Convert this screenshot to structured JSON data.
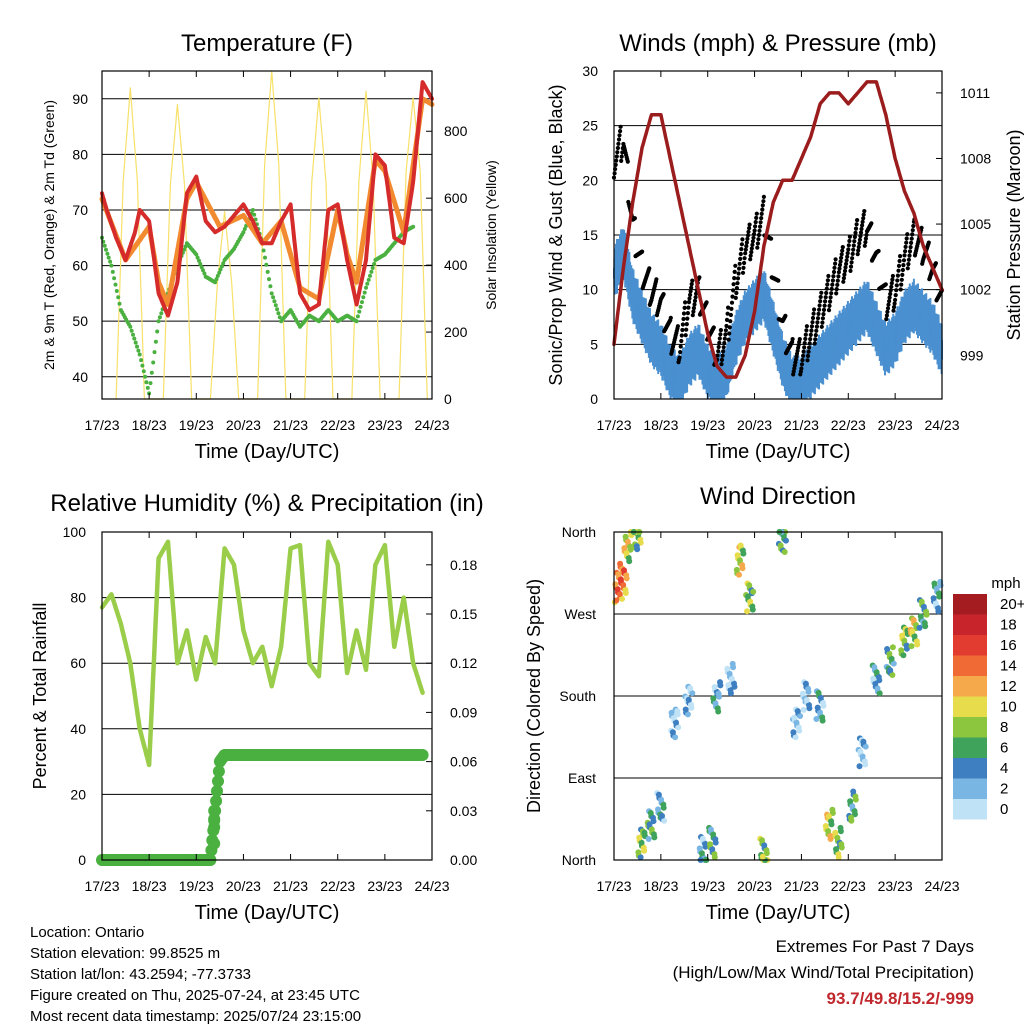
{
  "chart_data": [
    {
      "id": "temperature",
      "type": "line",
      "title": "Temperature (F)",
      "xlabel": "Time (Day/UTC)",
      "ylabel": "2m & 9m T (Red, Orange) & 2m Td (Green)",
      "y2label": "Solar Insolation (Yellow)",
      "x_ticks": [
        "17/23",
        "18/23",
        "19/23",
        "20/23",
        "21/23",
        "22/23",
        "23/23",
        "24/23"
      ],
      "ylim": [
        36,
        95
      ],
      "y_ticks": [
        40,
        50,
        60,
        70,
        80,
        90
      ],
      "y2lim": [
        0,
        980
      ],
      "y2_ticks": [
        0,
        200,
        400,
        600,
        800
      ],
      "colors": {
        "t2m": "#d62b2b",
        "t9m": "#f28a30",
        "td": "#4ab040",
        "solar": "#f7e16a"
      },
      "series": [
        {
          "key": "t2m",
          "x": [
            0,
            0.1,
            0.3,
            0.5,
            0.7,
            0.8,
            1,
            1.2,
            1.4,
            1.6,
            1.8,
            2,
            2.2,
            2.4,
            2.6,
            2.8,
            3,
            3.2,
            3.4,
            3.6,
            3.8,
            4,
            4.2,
            4.4,
            4.6,
            4.8,
            5,
            5.2,
            5.4,
            5.6,
            5.8,
            6,
            6.2,
            6.4,
            6.6,
            6.8,
            7
          ],
          "y": [
            73,
            70,
            65,
            61,
            66,
            70,
            68,
            55,
            51,
            57,
            73,
            76,
            68,
            66,
            67,
            69,
            71,
            68,
            64,
            64,
            68,
            71,
            55,
            52,
            53,
            70,
            71,
            61,
            53,
            61,
            80,
            78,
            65,
            64,
            75,
            93,
            90
          ]
        },
        {
          "key": "t9m",
          "x": [
            0,
            0.5,
            1,
            1.2,
            1.4,
            1.8,
            2,
            2.5,
            3,
            3.4,
            3.8,
            4.2,
            4.6,
            5,
            5.2,
            5.4,
            5.8,
            6,
            6.4,
            6.8,
            7
          ],
          "y": [
            72,
            61,
            67,
            57,
            53,
            72,
            75,
            67,
            69,
            64,
            68,
            56,
            54,
            70,
            62,
            57,
            79,
            77,
            66,
            90,
            89
          ]
        },
        {
          "key": "td",
          "x": [
            0,
            0.2,
            0.4,
            0.6,
            0.8,
            1,
            1.2,
            1.4,
            1.6,
            1.8,
            2,
            2.2,
            2.4,
            2.6,
            2.8,
            3,
            3.2,
            3.4,
            3.6,
            3.8,
            4,
            4.2,
            4.4,
            4.6,
            4.8,
            5,
            5.2,
            5.4,
            5.6,
            5.8,
            6,
            6.2,
            6.4,
            6.6
          ],
          "y": [
            65,
            60,
            52,
            49,
            44,
            37,
            50,
            55,
            60,
            64,
            62,
            58,
            57,
            61,
            63,
            66,
            70,
            64,
            55,
            50,
            52,
            49,
            51,
            50,
            52,
            50,
            51,
            50,
            56,
            61,
            62,
            64,
            66,
            67
          ]
        },
        {
          "key": "solar",
          "x": [
            0.3,
            0.45,
            0.6,
            0.75,
            0.9,
            1.3,
            1.45,
            1.6,
            1.75,
            1.9,
            2.3,
            2.45,
            2.6,
            2.75,
            2.9,
            3.3,
            3.45,
            3.6,
            3.75,
            3.9,
            4.3,
            4.45,
            4.6,
            4.75,
            4.9,
            5.3,
            5.45,
            5.6,
            5.75,
            5.9,
            6.3,
            6.45,
            6.6,
            6.75,
            6.9
          ],
          "y": [
            0,
            650,
            930,
            650,
            0,
            0,
            640,
            880,
            640,
            0,
            0,
            350,
            560,
            350,
            0,
            0,
            700,
            980,
            700,
            0,
            0,
            650,
            900,
            650,
            0,
            0,
            650,
            920,
            650,
            0,
            0,
            680,
            900,
            680,
            0
          ]
        }
      ]
    },
    {
      "id": "winds",
      "type": "scatter",
      "title": "Winds (mph) & Pressure (mb)",
      "xlabel": "Time (Day/UTC)",
      "ylabel": "Sonic/Prop Wind & Gust (Blue, Black)",
      "y2label": "Station Pressure (Maroon)",
      "x_ticks": [
        "17/23",
        "18/23",
        "19/23",
        "20/23",
        "21/23",
        "22/23",
        "23/23",
        "24/23"
      ],
      "ylim": [
        0,
        30
      ],
      "y_ticks": [
        0,
        5,
        10,
        15,
        20,
        25,
        30
      ],
      "y2lim": [
        997,
        1012
      ],
      "y2_ticks": [
        999,
        1002,
        1005,
        1008,
        1011
      ],
      "colors": {
        "wind": "#4a90d0",
        "gust": "#000000",
        "pressure": "#9b1c1c"
      },
      "series": [
        {
          "key": "wind",
          "x": [
            0,
            0.2,
            0.4,
            0.6,
            0.8,
            1,
            1.2,
            1.4,
            1.6,
            1.8,
            2,
            2.2,
            2.4,
            2.6,
            2.8,
            3,
            3.2,
            3.4,
            3.6,
            3.8,
            4,
            4.2,
            4.4,
            4.6,
            4.8,
            5,
            5.2,
            5.4,
            5.6,
            5.8,
            6,
            6.2,
            6.4,
            6.6,
            6.8,
            7
          ],
          "y": [
            12,
            14,
            10,
            8,
            6,
            5,
            3,
            2,
            4,
            5,
            3,
            2,
            3,
            6,
            8,
            9,
            10,
            7,
            4,
            2,
            2,
            3,
            4,
            5,
            6,
            7,
            8,
            9,
            7,
            5,
            6,
            8,
            9,
            8,
            7,
            5
          ]
        },
        {
          "key": "gust",
          "x": [
            0,
            0.2,
            0.4,
            0.6,
            0.8,
            1,
            1.2,
            1.4,
            1.6,
            1.8,
            2,
            2.2,
            2.4,
            2.6,
            2.8,
            3,
            3.2,
            3.4,
            3.6,
            3.8,
            4,
            4.2,
            4.4,
            4.6,
            4.8,
            5,
            5.2,
            5.4,
            5.6,
            5.8,
            6,
            6.2,
            6.4,
            6.6,
            6.8,
            7
          ],
          "y": [
            22,
            24,
            16,
            12,
            10,
            9,
            6,
            5,
            9,
            10,
            7,
            4,
            6,
            11,
            14,
            15,
            17,
            12,
            7,
            4,
            4,
            6,
            8,
            10,
            12,
            13,
            15,
            16,
            13,
            9,
            10,
            13,
            15,
            14,
            12,
            9
          ]
        },
        {
          "key": "pressure",
          "x": [
            0,
            0.2,
            0.4,
            0.6,
            0.8,
            1,
            1.2,
            1.4,
            1.6,
            1.8,
            2,
            2.2,
            2.4,
            2.6,
            2.8,
            3,
            3.2,
            3.4,
            3.6,
            3.8,
            4,
            4.2,
            4.4,
            4.6,
            4.8,
            5,
            5.2,
            5.4,
            5.6,
            5.8,
            6,
            6.2,
            6.4,
            6.6,
            6.8,
            7
          ],
          "y": [
            999.5,
            1003,
            1006,
            1008.5,
            1010,
            1010,
            1008,
            1006,
            1004,
            1002,
            1000,
            998.5,
            998,
            998,
            999,
            1001,
            1004,
            1006,
            1007,
            1007,
            1008,
            1009,
            1010.5,
            1011,
            1011,
            1010.5,
            1011,
            1011.5,
            1011.5,
            1010,
            1008,
            1006.5,
            1005.5,
            1004,
            1003,
            1002
          ]
        }
      ]
    },
    {
      "id": "humidity",
      "type": "line",
      "title": "Relative Humidity (%) & Precipitation (in)",
      "xlabel": "Time (Day/UTC)",
      "ylabel": "Percent & Total Rainfall",
      "x_ticks": [
        "17/23",
        "18/23",
        "19/23",
        "20/23",
        "21/23",
        "22/23",
        "23/23",
        "24/23"
      ],
      "ylim": [
        0,
        100
      ],
      "y_ticks": [
        0,
        20,
        40,
        60,
        80,
        100
      ],
      "y2lim": [
        0,
        0.2
      ],
      "y2_ticks": [
        "0.00",
        "0.03",
        "0.06",
        "0.09",
        "0.12",
        "0.15",
        "0.18"
      ],
      "colors": {
        "rh": "#9acd4a",
        "precip": "#4ab040"
      },
      "series": [
        {
          "key": "rh",
          "x": [
            0,
            0.2,
            0.4,
            0.6,
            0.8,
            1,
            1.2,
            1.4,
            1.6,
            1.8,
            2,
            2.2,
            2.4,
            2.6,
            2.8,
            3,
            3.2,
            3.4,
            3.6,
            3.8,
            4,
            4.2,
            4.4,
            4.6,
            4.8,
            5,
            5.2,
            5.4,
            5.6,
            5.8,
            6,
            6.2,
            6.4,
            6.6,
            6.8
          ],
          "y": [
            77,
            81,
            72,
            60,
            40,
            29,
            92,
            97,
            60,
            70,
            55,
            68,
            60,
            95,
            90,
            70,
            60,
            65,
            53,
            65,
            95,
            96,
            60,
            56,
            97,
            90,
            57,
            70,
            58,
            90,
            96,
            65,
            80,
            60,
            51
          ]
        },
        {
          "key": "precip",
          "x": [
            0,
            1.4,
            2.3,
            2.5,
            2.6,
            6.8
          ],
          "y": [
            0,
            0,
            0,
            0.06,
            0.064,
            0.064
          ]
        }
      ]
    },
    {
      "id": "direction",
      "type": "scatter",
      "title": "Wind Direction",
      "xlabel": "Time (Day/UTC)",
      "ylabel": "Direction (Colored By Speed)",
      "x_ticks": [
        "17/23",
        "18/23",
        "19/23",
        "20/23",
        "21/23",
        "22/23",
        "23/23",
        "24/23"
      ],
      "y_ticks": [
        "North",
        "East",
        "South",
        "West",
        "North"
      ],
      "ylim": [
        0,
        360
      ],
      "legend_title": "mph",
      "legend_labels": [
        "20+",
        "18",
        "16",
        "14",
        "12",
        "10",
        "8",
        "6",
        "4",
        "2",
        "0"
      ],
      "legend_colors": [
        "#a51c20",
        "#c8242b",
        "#e23b2f",
        "#f06a35",
        "#f6a94a",
        "#e6dc4c",
        "#8cc63f",
        "#3fa35b",
        "#3d7fc0",
        "#7ab6e3",
        "#bfe2f6"
      ],
      "points": [
        {
          "x": 0.1,
          "y": 300,
          "s": 14
        },
        {
          "x": 0.2,
          "y": 310,
          "s": 14
        },
        {
          "x": 0.3,
          "y": 345,
          "s": 10
        },
        {
          "x": 0.5,
          "y": 358,
          "s": 8
        },
        {
          "x": 0.6,
          "y": 20,
          "s": 8
        },
        {
          "x": 0.8,
          "y": 40,
          "s": 6
        },
        {
          "x": 1.0,
          "y": 60,
          "s": 4
        },
        {
          "x": 1.3,
          "y": 150,
          "s": 2
        },
        {
          "x": 1.6,
          "y": 175,
          "s": 2
        },
        {
          "x": 1.9,
          "y": 10,
          "s": 4
        },
        {
          "x": 2.1,
          "y": 20,
          "s": 6
        },
        {
          "x": 2.2,
          "y": 180,
          "s": 4
        },
        {
          "x": 2.5,
          "y": 200,
          "s": 2
        },
        {
          "x": 2.7,
          "y": 330,
          "s": 10
        },
        {
          "x": 2.9,
          "y": 290,
          "s": 8
        },
        {
          "x": 3.2,
          "y": 10,
          "s": 8
        },
        {
          "x": 3.6,
          "y": 355,
          "s": 6
        },
        {
          "x": 3.9,
          "y": 150,
          "s": 2
        },
        {
          "x": 4.1,
          "y": 180,
          "s": 2
        },
        {
          "x": 4.4,
          "y": 170,
          "s": 4
        },
        {
          "x": 4.6,
          "y": 40,
          "s": 10
        },
        {
          "x": 4.8,
          "y": 20,
          "s": 8
        },
        {
          "x": 5.1,
          "y": 60,
          "s": 6
        },
        {
          "x": 5.3,
          "y": 120,
          "s": 2
        },
        {
          "x": 5.6,
          "y": 200,
          "s": 4
        },
        {
          "x": 5.9,
          "y": 220,
          "s": 6
        },
        {
          "x": 6.2,
          "y": 240,
          "s": 8
        },
        {
          "x": 6.4,
          "y": 250,
          "s": 10
        },
        {
          "x": 6.6,
          "y": 270,
          "s": 6
        },
        {
          "x": 6.9,
          "y": 290,
          "s": 4
        }
      ]
    }
  ],
  "footer": {
    "location": "Location: Ontario",
    "elevation": "Station elevation: 99.8525 m",
    "latlon": "Station lat/lon: 43.2594; -77.3733",
    "created": "Figure created on Thu, 2025-07-24, at 23:45 UTC",
    "recent": "Most recent data timestamp: 2025/07/24 23:15:00"
  },
  "extremes": {
    "line1": "Extremes For Past 7 Days",
    "line2": "(High/Low/Max Wind/Total Precipitation)",
    "value": "93.7/49.8/15.2/-999"
  }
}
